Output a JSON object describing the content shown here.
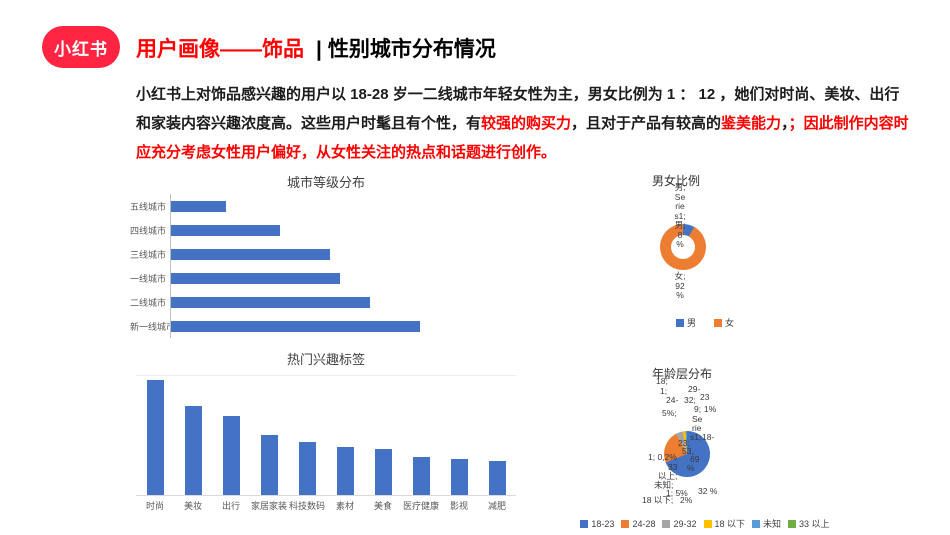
{
  "brand": {
    "logo_text": "小红书",
    "logo_color": "#ff2442"
  },
  "header": {
    "title_red": "用户画像——饰品",
    "separator": "|",
    "title_black": "性别城市分布情况",
    "accent_color": "#fe0000"
  },
  "paragraph": {
    "segments": [
      {
        "text": "小红书上对饰品感兴趣的用户以 18-28 岁一二线城市年轻女性为主，男女比例为 1 ： 12 ，她们对时尚、美妆、出行和家装内容兴趣浓度高。这些用户时髦且有个性，有",
        "red": false
      },
      {
        "text": "较强的购买力",
        "red": true
      },
      {
        "text": "，且对于产品有较高的",
        "red": false
      },
      {
        "text": "鉴美能力",
        "red": true
      },
      {
        "text": "，",
        "red": false
      },
      {
        "text": "；因此制作内容时应充分考虑女性用户偏好，从女性关注的热点和话题进行创作。",
        "red": true
      }
    ]
  },
  "chart_data": [
    {
      "id": "city_level",
      "type": "bar",
      "orientation": "horizontal",
      "title": "城市等级分布",
      "categories": [
        "五线城市",
        "四线城市",
        "三线城市",
        "一线城市",
        "二线城市",
        "新一线城市"
      ],
      "values": [
        11,
        22,
        32,
        34,
        40,
        50
      ],
      "xlim": [
        0,
        70
      ],
      "bar_color": "#4472c4",
      "grid": false,
      "legend": false
    },
    {
      "id": "hot_tags",
      "type": "bar",
      "orientation": "vertical",
      "title": "热门兴趣标签",
      "categories": [
        "时尚",
        "美妆",
        "出行",
        "家居家装",
        "科技数码",
        "素材",
        "美食",
        "医疗健康",
        "影视",
        "减肥"
      ],
      "values": [
        48,
        37,
        33,
        25,
        22,
        20,
        19,
        16,
        15,
        14
      ],
      "ylim": [
        0,
        50
      ],
      "bar_color": "#4472c4",
      "grid": false,
      "legend": false
    },
    {
      "id": "gender_ratio",
      "type": "pie",
      "style": "donut",
      "title": "男女比例",
      "categories": [
        "男",
        "女"
      ],
      "values": [
        8,
        92
      ],
      "colors": [
        "#4472c4",
        "#ed7d31"
      ],
      "legend_position": "bottom",
      "label_fragments_top": [
        "男;",
        "Se",
        "rie",
        "s1;",
        "男;",
        "8",
        "%"
      ],
      "label_fragments_bottom": [
        "女;",
        "92",
        "%"
      ]
    },
    {
      "id": "age_distribution",
      "type": "pie",
      "style": "pie",
      "title": "年龄层分布",
      "categories": [
        "18-23",
        "24-28",
        "29-32",
        "18 以下",
        "未知",
        "33 以上"
      ],
      "values": [
        69,
        23,
        5,
        2,
        0.8,
        0.2
      ],
      "colors": [
        "#4472c4",
        "#ed7d31",
        "#a5a5a5",
        "#ffc000",
        "#5b9bd5",
        "#70ad47"
      ],
      "legend_position": "bottom",
      "label_fragments": [
        "18;",
        "1;",
        "29-",
        "24-",
        "32;",
        "23",
        "9;",
        "1%",
        "5%;",
        "Se",
        "rie",
        "s1;",
        "18-",
        "23;",
        "53,",
        "69",
        "%",
        "33",
        "以上;",
        "1; 0,2%",
        "未知;",
        "1; 5%",
        "18 以下;",
        "2%",
        "32 %"
      ]
    }
  ]
}
